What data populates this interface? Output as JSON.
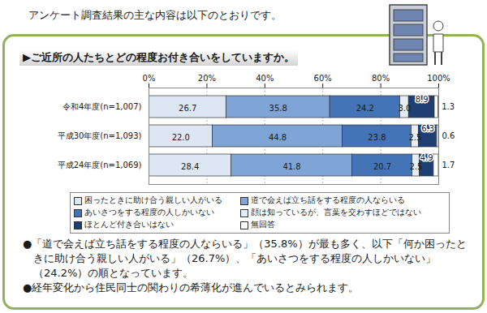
{
  "intro": "アンケート調査結果の主な内容は以下のとおりです。",
  "chart_data": {
    "type": "bar",
    "orientation": "horizontal",
    "stacked": true,
    "data_labels": true,
    "grid": true,
    "legend": "bottom",
    "title": "▶ご近所の人たちとどの程度お付き合いをしていますか。",
    "categories": [
      "令和4年度(n=1,007)",
      "平成30年度(n=1,093)",
      "平成24年度(n=1,069)"
    ],
    "xlim": [
      0,
      100
    ],
    "xticks": [
      {
        "value": 0,
        "label": "0%"
      },
      {
        "value": 20,
        "label": "20%"
      },
      {
        "value": 40,
        "label": "40%"
      },
      {
        "value": 60,
        "label": "60%"
      },
      {
        "value": 80,
        "label": "80%"
      },
      {
        "value": 100,
        "label": "100%"
      }
    ],
    "series": [
      {
        "name": "困ったときに助け合う親しい人がいる",
        "color": "#dde7f3",
        "values": [
          26.7,
          22.0,
          28.4
        ],
        "value_labels": [
          "26.7",
          "22.0",
          "28.4"
        ]
      },
      {
        "name": "道で会えば立ち話をする程度の人ならいる",
        "color": "#7fa5d6",
        "values": [
          35.8,
          44.8,
          41.8
        ]
      },
      {
        "name": "あいさつをする程度の人しかいない",
        "color": "#4374b8",
        "values": [
          24.2,
          23.8,
          20.7
        ]
      },
      {
        "name": "顔は知っているが、言葉を交わすほどではない",
        "color": "#e6edf6",
        "values": [
          3.0,
          2.5,
          2.5
        ],
        "value_labels": [
          "3.0",
          "2.5",
          "2.5"
        ]
      },
      {
        "name": "ほとんど付き合いはない",
        "color": "#1f3f73",
        "values": [
          8.9,
          6.3,
          4.9
        ]
      },
      {
        "name": "無回答",
        "color": "#ffffff",
        "values": [
          1.3,
          0.6,
          1.7
        ]
      }
    ]
  },
  "notes": [
    "●「道で会えば立ち話をする程度の人ならいる」（35.8%）が最も多く、以下「何か困ったときに助け合う親しい人がいる」（26.7%）、「あいさつをする程度の人しかいない」（24.2%）の順となっています。",
    "●経年変化から住民同士の関わりの希薄化が進んでいるとみられます。"
  ]
}
